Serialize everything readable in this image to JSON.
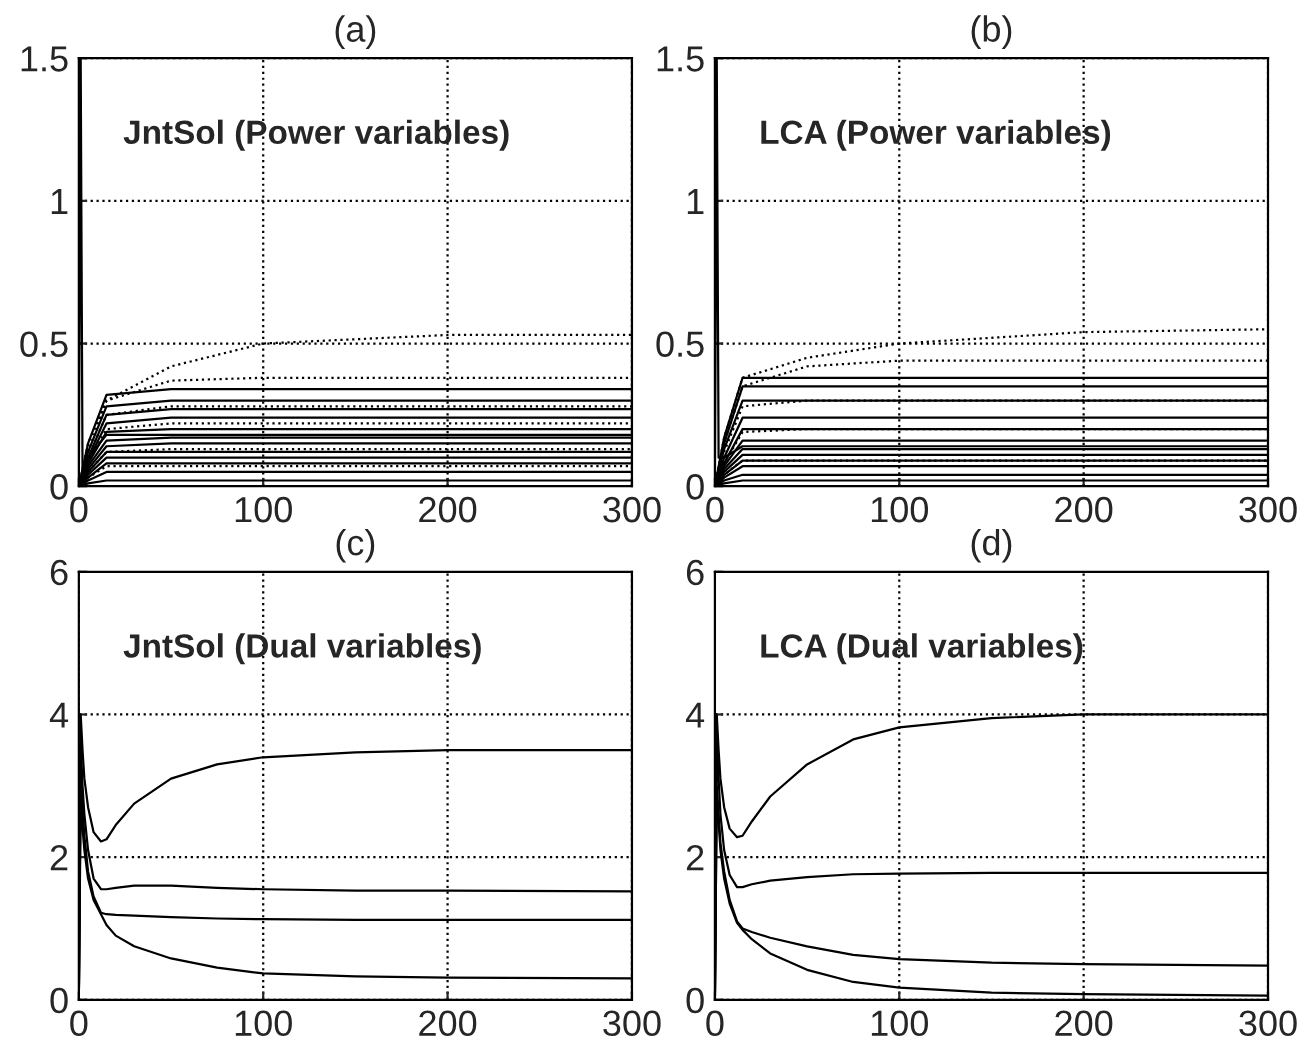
{
  "chart_data": [
    {
      "type": "line",
      "title": "(a)",
      "annotations": [
        "JntSol (Power variables)"
      ],
      "xlim": [
        0,
        300
      ],
      "xticks": [
        0,
        100,
        200,
        300
      ],
      "ylim": [
        0,
        1.5
      ],
      "yticks": [
        0,
        0.5,
        1,
        1.5
      ],
      "grid": true,
      "series": [
        {
          "color": "#000000",
          "line_style": "solid",
          "x": [
            0,
            1,
            2,
            5,
            15,
            300
          ],
          "values": [
            0,
            1.5,
            0.05,
            0.1,
            0.18,
            0.18
          ]
        },
        {
          "color": "#000000",
          "line_style": "solid",
          "x": [
            0,
            5,
            15,
            50,
            300
          ],
          "values": [
            0,
            0.15,
            0.32,
            0.34,
            0.34
          ]
        },
        {
          "color": "#000000",
          "line_style": "solid",
          "x": [
            0,
            5,
            15,
            50,
            300
          ],
          "values": [
            0,
            0.12,
            0.28,
            0.3,
            0.3
          ]
        },
        {
          "color": "#000000",
          "line_style": "solid",
          "x": [
            0,
            5,
            15,
            50,
            300
          ],
          "values": [
            0,
            0.1,
            0.25,
            0.27,
            0.27
          ]
        },
        {
          "color": "#000000",
          "line_style": "solid",
          "x": [
            0,
            5,
            15,
            50,
            300
          ],
          "values": [
            0,
            0.09,
            0.22,
            0.24,
            0.24
          ]
        },
        {
          "color": "#000000",
          "line_style": "solid",
          "x": [
            0,
            5,
            15,
            50,
            300
          ],
          "values": [
            0,
            0.08,
            0.19,
            0.2,
            0.2
          ]
        },
        {
          "color": "#000000",
          "line_style": "solid",
          "x": [
            0,
            5,
            15,
            50,
            300
          ],
          "values": [
            0,
            0.07,
            0.16,
            0.17,
            0.17
          ]
        },
        {
          "color": "#000000",
          "line_style": "solid",
          "x": [
            0,
            5,
            15,
            50,
            300
          ],
          "values": [
            0,
            0.06,
            0.14,
            0.15,
            0.15
          ]
        },
        {
          "color": "#000000",
          "line_style": "solid",
          "x": [
            0,
            5,
            15,
            50,
            300
          ],
          "values": [
            0,
            0.05,
            0.12,
            0.12,
            0.12
          ]
        },
        {
          "color": "#000000",
          "line_style": "solid",
          "x": [
            0,
            5,
            15,
            50,
            300
          ],
          "values": [
            0,
            0.04,
            0.1,
            0.1,
            0.1
          ]
        },
        {
          "color": "#000000",
          "line_style": "solid",
          "x": [
            0,
            5,
            15,
            50,
            300
          ],
          "values": [
            0,
            0.03,
            0.08,
            0.08,
            0.08
          ]
        },
        {
          "color": "#000000",
          "line_style": "solid",
          "x": [
            0,
            5,
            15,
            50,
            300
          ],
          "values": [
            0,
            0.02,
            0.05,
            0.05,
            0.05
          ]
        },
        {
          "color": "#000000",
          "line_style": "solid",
          "x": [
            0,
            5,
            15,
            50,
            300
          ],
          "values": [
            0,
            0.01,
            0.02,
            0.02,
            0.02
          ]
        },
        {
          "color": "#000000",
          "line_style": "dotted",
          "x": [
            0,
            5,
            15,
            50,
            100,
            200,
            300
          ],
          "values": [
            0,
            0.15,
            0.3,
            0.42,
            0.5,
            0.53,
            0.53
          ]
        },
        {
          "color": "#000000",
          "line_style": "dotted",
          "x": [
            0,
            5,
            15,
            50,
            100,
            200,
            300
          ],
          "values": [
            0,
            0.12,
            0.3,
            0.37,
            0.38,
            0.38,
            0.38
          ]
        },
        {
          "color": "#000000",
          "line_style": "dotted",
          "x": [
            0,
            5,
            15,
            50,
            100,
            200,
            300
          ],
          "values": [
            0,
            0.1,
            0.25,
            0.28,
            0.28,
            0.28,
            0.28
          ]
        },
        {
          "color": "#000000",
          "line_style": "dotted",
          "x": [
            0,
            5,
            15,
            50,
            100,
            200,
            300
          ],
          "values": [
            0,
            0.08,
            0.2,
            0.22,
            0.22,
            0.22,
            0.22
          ]
        },
        {
          "color": "#000000",
          "line_style": "dotted",
          "x": [
            0,
            5,
            15,
            50,
            100,
            200,
            300
          ],
          "values": [
            0,
            0.05,
            0.12,
            0.13,
            0.13,
            0.13,
            0.13
          ]
        },
        {
          "color": "#000000",
          "line_style": "dotted",
          "x": [
            0,
            5,
            15,
            50,
            100,
            200,
            300
          ],
          "values": [
            0,
            0.03,
            0.07,
            0.07,
            0.07,
            0.07,
            0.07
          ]
        }
      ]
    },
    {
      "type": "line",
      "title": "(b)",
      "annotations": [
        "LCA (Power variables)"
      ],
      "xlim": [
        0,
        300
      ],
      "xticks": [
        0,
        100,
        200,
        300
      ],
      "ylim": [
        0,
        1.5
      ],
      "yticks": [
        0,
        0.5,
        1,
        1.5
      ],
      "grid": true,
      "series": [
        {
          "color": "#000000",
          "line_style": "solid",
          "x": [
            0,
            1,
            2,
            5,
            15,
            300
          ],
          "values": [
            0,
            1.5,
            0.1,
            0.1,
            0.14,
            0.14
          ]
        },
        {
          "color": "#000000",
          "line_style": "solid",
          "x": [
            0,
            5,
            15,
            50,
            300
          ],
          "values": [
            0,
            0.17,
            0.38,
            0.38,
            0.38
          ]
        },
        {
          "color": "#000000",
          "line_style": "solid",
          "x": [
            0,
            5,
            15,
            50,
            300
          ],
          "values": [
            0,
            0.15,
            0.35,
            0.35,
            0.35
          ]
        },
        {
          "color": "#000000",
          "line_style": "solid",
          "x": [
            0,
            5,
            15,
            50,
            300
          ],
          "values": [
            0,
            0.13,
            0.3,
            0.3,
            0.3
          ]
        },
        {
          "color": "#000000",
          "line_style": "solid",
          "x": [
            0,
            5,
            15,
            50,
            300
          ],
          "values": [
            0,
            0.1,
            0.24,
            0.24,
            0.24
          ]
        },
        {
          "color": "#000000",
          "line_style": "solid",
          "x": [
            0,
            5,
            15,
            50,
            300
          ],
          "values": [
            0,
            0.08,
            0.2,
            0.2,
            0.2
          ]
        },
        {
          "color": "#000000",
          "line_style": "solid",
          "x": [
            0,
            5,
            15,
            50,
            300
          ],
          "values": [
            0,
            0.07,
            0.16,
            0.16,
            0.16
          ]
        },
        {
          "color": "#000000",
          "line_style": "solid",
          "x": [
            0,
            5,
            15,
            50,
            300
          ],
          "values": [
            0,
            0.06,
            0.13,
            0.13,
            0.13
          ]
        },
        {
          "color": "#000000",
          "line_style": "solid",
          "x": [
            0,
            5,
            15,
            50,
            300
          ],
          "values": [
            0,
            0.05,
            0.11,
            0.11,
            0.11
          ]
        },
        {
          "color": "#000000",
          "line_style": "solid",
          "x": [
            0,
            5,
            15,
            50,
            300
          ],
          "values": [
            0,
            0.04,
            0.09,
            0.09,
            0.09
          ]
        },
        {
          "color": "#000000",
          "line_style": "solid",
          "x": [
            0,
            5,
            15,
            50,
            300
          ],
          "values": [
            0,
            0.03,
            0.07,
            0.07,
            0.07
          ]
        },
        {
          "color": "#000000",
          "line_style": "solid",
          "x": [
            0,
            5,
            15,
            50,
            300
          ],
          "values": [
            0,
            0.02,
            0.04,
            0.04,
            0.04
          ]
        },
        {
          "color": "#000000",
          "line_style": "solid",
          "x": [
            0,
            5,
            15,
            50,
            300
          ],
          "values": [
            0,
            0.01,
            0.02,
            0.02,
            0.02
          ]
        },
        {
          "color": "#000000",
          "line_style": "dotted",
          "x": [
            0,
            5,
            15,
            50,
            100,
            200,
            300
          ],
          "values": [
            0,
            0.17,
            0.38,
            0.45,
            0.5,
            0.54,
            0.55
          ]
        },
        {
          "color": "#000000",
          "line_style": "dotted",
          "x": [
            0,
            5,
            15,
            50,
            100,
            200,
            300
          ],
          "values": [
            0,
            0.15,
            0.35,
            0.42,
            0.44,
            0.44,
            0.44
          ]
        },
        {
          "color": "#000000",
          "line_style": "dotted",
          "x": [
            0,
            5,
            15,
            50,
            100,
            200,
            300
          ],
          "values": [
            0,
            0.12,
            0.28,
            0.3,
            0.3,
            0.3,
            0.3
          ]
        },
        {
          "color": "#000000",
          "line_style": "dotted",
          "x": [
            0,
            5,
            15,
            50,
            100,
            200,
            300
          ],
          "values": [
            0,
            0.08,
            0.19,
            0.2,
            0.2,
            0.2,
            0.2
          ]
        },
        {
          "color": "#000000",
          "line_style": "dotted",
          "x": [
            0,
            5,
            15,
            50,
            100,
            200,
            300
          ],
          "values": [
            0,
            0.04,
            0.09,
            0.09,
            0.09,
            0.09,
            0.09
          ]
        }
      ]
    },
    {
      "type": "line",
      "title": "(c)",
      "annotations": [
        "JntSol (Dual variables)"
      ],
      "xlim": [
        0,
        300
      ],
      "xticks": [
        0,
        100,
        200,
        300
      ],
      "ylim": [
        0,
        6
      ],
      "yticks": [
        0,
        2,
        4,
        6
      ],
      "grid": true,
      "series": [
        {
          "color": "#000000",
          "line_style": "solid",
          "x": [
            0,
            1,
            2,
            3,
            5,
            8,
            12,
            15,
            20,
            30,
            50,
            75,
            100,
            150,
            200,
            300
          ],
          "values": [
            0,
            4.0,
            3.5,
            3.1,
            2.7,
            2.35,
            2.22,
            2.25,
            2.45,
            2.75,
            3.1,
            3.3,
            3.4,
            3.47,
            3.5,
            3.5
          ]
        },
        {
          "color": "#000000",
          "line_style": "solid",
          "x": [
            0,
            1,
            2,
            3,
            5,
            8,
            12,
            15,
            20,
            30,
            50,
            75,
            100,
            150,
            200,
            300
          ],
          "values": [
            0,
            3.6,
            3.0,
            2.6,
            2.1,
            1.7,
            1.55,
            1.55,
            1.57,
            1.6,
            1.6,
            1.57,
            1.55,
            1.53,
            1.53,
            1.52
          ]
        },
        {
          "color": "#000000",
          "line_style": "solid",
          "x": [
            0,
            1,
            2,
            3,
            5,
            8,
            12,
            15,
            20,
            30,
            50,
            75,
            100,
            150,
            200,
            300
          ],
          "values": [
            0,
            3.2,
            2.7,
            2.3,
            1.8,
            1.45,
            1.22,
            1.2,
            1.19,
            1.18,
            1.16,
            1.14,
            1.13,
            1.12,
            1.12,
            1.12
          ]
        },
        {
          "color": "#000000",
          "line_style": "solid",
          "x": [
            0,
            1,
            2,
            3,
            5,
            8,
            12,
            15,
            20,
            30,
            50,
            75,
            100,
            150,
            200,
            300
          ],
          "values": [
            0,
            2.8,
            2.4,
            2.1,
            1.7,
            1.4,
            1.2,
            1.05,
            0.9,
            0.75,
            0.58,
            0.45,
            0.37,
            0.33,
            0.31,
            0.3
          ]
        }
      ]
    },
    {
      "type": "line",
      "title": "(d)",
      "annotations": [
        "LCA (Dual variables)"
      ],
      "xlim": [
        0,
        300
      ],
      "xticks": [
        0,
        100,
        200,
        300
      ],
      "ylim": [
        0,
        6
      ],
      "yticks": [
        0,
        2,
        4,
        6
      ],
      "grid": true,
      "series": [
        {
          "color": "#000000",
          "line_style": "solid",
          "x": [
            0,
            1,
            2,
            3,
            5,
            8,
            12,
            15,
            20,
            30,
            50,
            75,
            100,
            150,
            200,
            300
          ],
          "values": [
            0,
            4.0,
            3.5,
            3.1,
            2.7,
            2.4,
            2.28,
            2.3,
            2.5,
            2.85,
            3.3,
            3.65,
            3.82,
            3.95,
            4.0,
            4.0
          ]
        },
        {
          "color": "#000000",
          "line_style": "solid",
          "x": [
            0,
            1,
            2,
            3,
            5,
            8,
            12,
            15,
            20,
            30,
            50,
            75,
            100,
            150,
            200,
            300
          ],
          "values": [
            0,
            3.7,
            3.1,
            2.6,
            2.1,
            1.75,
            1.58,
            1.58,
            1.62,
            1.67,
            1.72,
            1.76,
            1.77,
            1.78,
            1.78,
            1.78
          ]
        },
        {
          "color": "#000000",
          "line_style": "solid",
          "x": [
            0,
            1,
            2,
            3,
            5,
            8,
            12,
            15,
            20,
            30,
            50,
            75,
            100,
            150,
            200,
            300
          ],
          "values": [
            0,
            3.0,
            2.6,
            2.2,
            1.8,
            1.4,
            1.1,
            1.0,
            0.95,
            0.87,
            0.75,
            0.63,
            0.57,
            0.52,
            0.5,
            0.48
          ]
        },
        {
          "color": "#000000",
          "line_style": "solid",
          "x": [
            0,
            1,
            2,
            3,
            5,
            8,
            12,
            15,
            20,
            30,
            50,
            75,
            100,
            150,
            200,
            300
          ],
          "values": [
            0,
            2.9,
            2.5,
            2.1,
            1.7,
            1.35,
            1.08,
            0.98,
            0.85,
            0.65,
            0.42,
            0.25,
            0.17,
            0.1,
            0.08,
            0.06
          ]
        }
      ]
    }
  ]
}
